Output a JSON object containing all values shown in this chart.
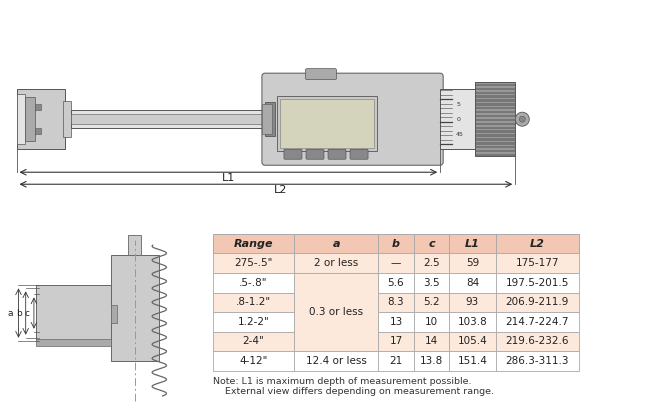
{
  "table_headers": [
    "Range",
    "a",
    "b",
    "c",
    "L1",
    "L2"
  ],
  "table_rows": [
    [
      "275-.5\"",
      "2 or less",
      "—",
      "2.5",
      "59",
      "175-177"
    ],
    [
      ".5-.8\"",
      "",
      "5.6",
      "3.5",
      "84",
      "197.5-201.5"
    ],
    [
      ".8-1.2\"",
      "0.3 or less",
      "8.3",
      "5.2",
      "93",
      "206.9-211.9"
    ],
    [
      "1.2-2\"",
      "",
      "13",
      "10",
      "103.8",
      "214.7-224.7"
    ],
    [
      "2-4\"",
      "",
      "17",
      "14",
      "105.4",
      "219.6-232.6"
    ],
    [
      "4-12\"",
      "12.4 or less",
      "21",
      "13.8",
      "151.4",
      "286.3-311.3"
    ]
  ],
  "note_line1": "Note: L1 is maximum depth of measurement possible.",
  "note_line2": "External view differs depending on measurement range.",
  "header_bg": "#f2c8b4",
  "row_bg_alt": "#fde8dc",
  "row_bg_white": "#ffffff",
  "border_color": "#aaaaaa",
  "text_color": "#222222",
  "bg_color": "#ffffff",
  "lgray": "#cccccc",
  "gray": "#aaaaaa",
  "dgray": "#888888",
  "vlgray": "#e4e4e4"
}
